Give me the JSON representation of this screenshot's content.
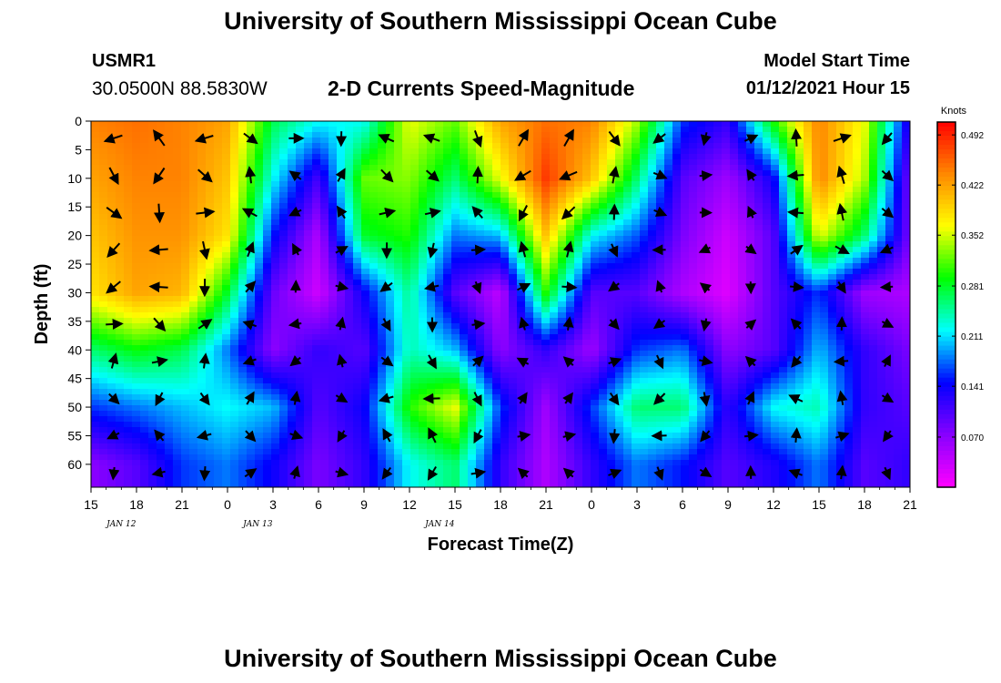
{
  "header": {
    "title": "University of Southern Mississippi Ocean Cube",
    "station_id": "USMR1",
    "coordinates": "30.0500N 88.5830W",
    "model_start_label": "Model Start Time",
    "model_start_value": "01/12/2021 Hour 15"
  },
  "footer": {
    "title": "University of Southern Mississippi Ocean Cube"
  },
  "chart_data": {
    "type": "heatmap",
    "title": "2-D Currents Speed-Magnitude",
    "xlabel": "Forecast Time(Z)",
    "ylabel": "Depth (ft)",
    "x_tick_labels": [
      "15",
      "18",
      "21",
      "0",
      "3",
      "6",
      "9",
      "12",
      "15",
      "18",
      "21",
      "0",
      "3",
      "6",
      "9",
      "12",
      "15",
      "18",
      "21"
    ],
    "date_labels": [
      {
        "text": "JAN 12",
        "at_tick": 2
      },
      {
        "text": "JAN 13",
        "at_tick": 11
      },
      {
        "text": "JAN 14",
        "at_tick": 23
      }
    ],
    "x_range_hours": [
      0,
      54
    ],
    "y_ticks": [
      0,
      5,
      10,
      15,
      20,
      25,
      30,
      35,
      40,
      45,
      50,
      55,
      60
    ],
    "y_range": [
      0,
      64
    ],
    "y_inverted": true,
    "colorbar": {
      "unit": "Knots",
      "tick_labels": [
        "0.492",
        "0.422",
        "0.352",
        "0.281",
        "0.211",
        "0.141",
        "0.070"
      ],
      "tick_values": [
        0.492,
        0.422,
        0.352,
        0.281,
        0.211,
        0.141,
        0.07
      ],
      "range": [
        0.0,
        0.51
      ],
      "colors": [
        "#ff00ff",
        "#8800ff",
        "#0000ff",
        "#00ffff",
        "#00ff00",
        "#ffff00",
        "#ff8800",
        "#ff0000"
      ]
    },
    "speed_grid": {
      "hours": [
        0,
        3,
        6,
        9,
        12,
        15,
        18,
        21,
        24,
        27,
        30,
        33,
        36,
        39,
        42,
        45,
        48,
        51,
        54
      ],
      "depths": [
        0,
        10,
        20,
        30,
        40,
        50,
        60
      ],
      "values": [
        [
          0.44,
          0.42,
          0.4,
          0.38,
          0.26,
          0.16,
          0.07
        ],
        [
          0.45,
          0.44,
          0.43,
          0.42,
          0.29,
          0.18,
          0.1
        ],
        [
          0.44,
          0.44,
          0.43,
          0.41,
          0.27,
          0.2,
          0.16
        ],
        [
          0.42,
          0.4,
          0.38,
          0.28,
          0.18,
          0.22,
          0.18
        ],
        [
          0.27,
          0.22,
          0.15,
          0.09,
          0.07,
          0.2,
          0.14
        ],
        [
          0.22,
          0.11,
          0.05,
          0.03,
          0.12,
          0.1,
          0.08
        ],
        [
          0.22,
          0.32,
          0.28,
          0.14,
          0.1,
          0.14,
          0.12
        ],
        [
          0.36,
          0.33,
          0.3,
          0.25,
          0.24,
          0.3,
          0.22
        ],
        [
          0.32,
          0.26,
          0.18,
          0.1,
          0.2,
          0.36,
          0.26
        ],
        [
          0.42,
          0.36,
          0.2,
          0.04,
          0.07,
          0.16,
          0.12
        ],
        [
          0.45,
          0.48,
          0.4,
          0.3,
          0.12,
          0.06,
          0.05
        ],
        [
          0.44,
          0.4,
          0.22,
          0.1,
          0.06,
          0.16,
          0.12
        ],
        [
          0.34,
          0.26,
          0.17,
          0.1,
          0.16,
          0.26,
          0.18
        ],
        [
          0.16,
          0.1,
          0.08,
          0.05,
          0.18,
          0.26,
          0.15
        ],
        [
          0.12,
          0.06,
          0.03,
          0.02,
          0.07,
          0.12,
          0.1
        ],
        [
          0.3,
          0.14,
          0.1,
          0.1,
          0.1,
          0.22,
          0.13
        ],
        [
          0.44,
          0.44,
          0.36,
          0.16,
          0.2,
          0.24,
          0.18
        ],
        [
          0.36,
          0.34,
          0.26,
          0.06,
          0.12,
          0.12,
          0.1
        ],
        [
          0.12,
          0.08,
          0.08,
          0.05,
          0.08,
          0.1,
          0.12
        ]
      ]
    }
  }
}
